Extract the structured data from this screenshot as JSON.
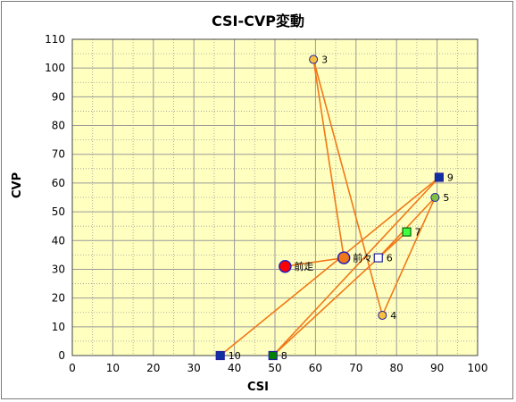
{
  "chart_data": {
    "type": "scatter",
    "title": "CSI-CVP変動",
    "xlabel": "CSI",
    "ylabel": "CVP",
    "xlim": [
      0,
      100
    ],
    "ylim": [
      0,
      110
    ],
    "x_ticks": [
      0,
      10,
      20,
      30,
      40,
      50,
      60,
      70,
      80,
      90,
      100
    ],
    "y_ticks": [
      0,
      10,
      20,
      30,
      40,
      50,
      60,
      70,
      80,
      90,
      100,
      110
    ],
    "grid": true,
    "colors": {
      "plot_bg": "#ffffc0",
      "grid": "#9a9a9a",
      "line": "#f07818"
    },
    "points": [
      {
        "label": "前走",
        "x": 52.5,
        "y": 31,
        "marker": "circle-large",
        "fill": "#ff0000",
        "stroke": "#2020c0"
      },
      {
        "label": "前々",
        "x": 67,
        "y": 34,
        "marker": "circle-large",
        "fill": "#f07818",
        "stroke": "#2020c0"
      },
      {
        "label": "3",
        "x": 59.5,
        "y": 103,
        "marker": "circle",
        "fill": "#f8c040",
        "stroke": "#2020a0"
      },
      {
        "label": "4",
        "x": 76.5,
        "y": 14,
        "marker": "circle",
        "fill": "#f8c040",
        "stroke": "#2020a0"
      },
      {
        "label": "5",
        "x": 89.5,
        "y": 55,
        "marker": "circle",
        "fill": "#80c040",
        "stroke": "#2020a0"
      },
      {
        "label": "6",
        "x": 75.5,
        "y": 34,
        "marker": "square",
        "fill": "#ffffff",
        "stroke": "#2020a0"
      },
      {
        "label": "7",
        "x": 82.5,
        "y": 43,
        "marker": "square",
        "fill": "#40ff40",
        "stroke": "#006000"
      },
      {
        "label": "8",
        "x": 49.5,
        "y": 0,
        "marker": "square",
        "fill": "#008000",
        "stroke": "#2020a0"
      },
      {
        "label": "9",
        "x": 90.5,
        "y": 62,
        "marker": "square",
        "fill": "#1030a0",
        "stroke": "#2020a0"
      },
      {
        "label": "10",
        "x": 36.5,
        "y": 0,
        "marker": "square",
        "fill": "#1030a0",
        "stroke": "#2020a0"
      }
    ],
    "path_order": [
      "10",
      "9",
      "8",
      "7",
      "6",
      "5",
      "4",
      "3",
      "前々",
      "前走"
    ]
  }
}
